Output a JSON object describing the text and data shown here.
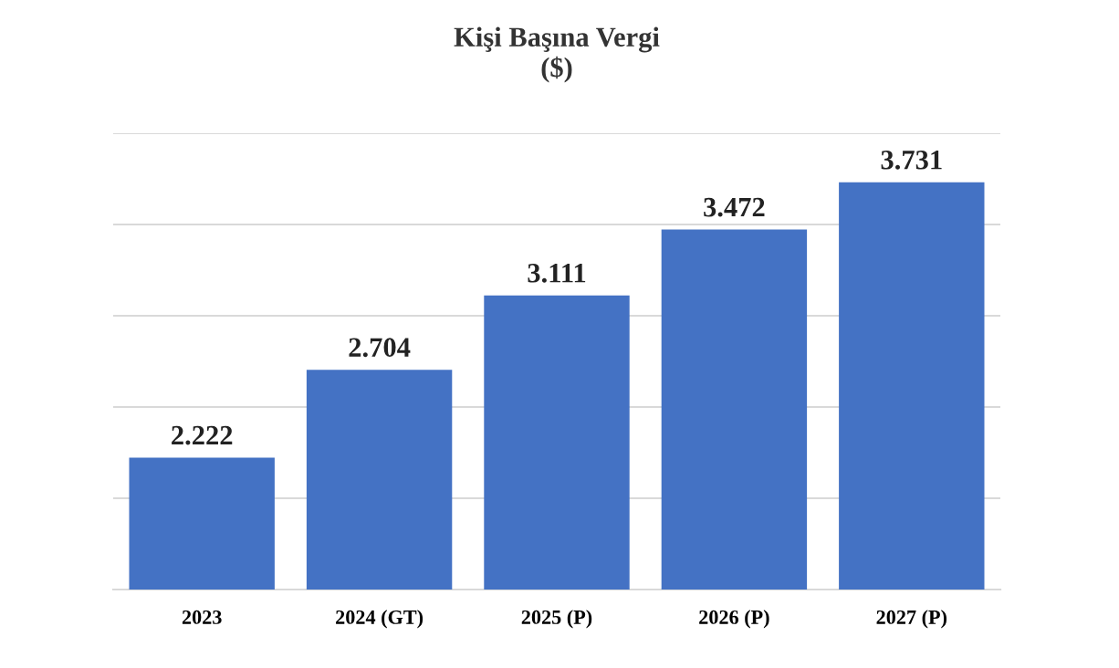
{
  "chart_data": {
    "type": "bar",
    "title": "Kişi Başına Vergi\n($)",
    "categories": [
      "2023",
      "2024 (GT)",
      "2025 (P)",
      "2026 (P)",
      "2027 (P)"
    ],
    "values": [
      2222,
      2704,
      3111,
      3472,
      3731
    ],
    "value_labels": [
      "2.222",
      "2.704",
      "3.111",
      "3.472",
      "3.731"
    ],
    "color": "#4472c4",
    "ylim": [
      1500,
      4000
    ],
    "yticks": [
      {
        "value": 1500,
        "label": null
      },
      {
        "value": 2000,
        "label": null
      },
      {
        "value": 2500,
        "label": null
      },
      {
        "value": 3000,
        "label": null
      },
      {
        "value": 3500,
        "label": null
      },
      {
        "value": 4000,
        "label": null
      }
    ],
    "grid": "y",
    "tick_labels": "x"
  }
}
